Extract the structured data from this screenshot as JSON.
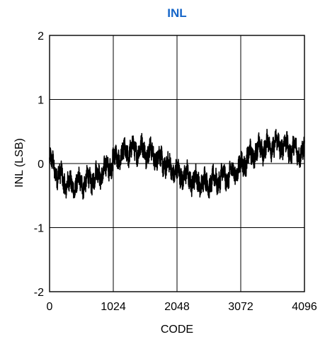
{
  "chart_data": {
    "type": "line",
    "title": "INL",
    "xlabel": "CODE",
    "ylabel": "INL (LSB)",
    "xlim": [
      0,
      4096
    ],
    "ylim": [
      -2,
      2
    ],
    "x_ticks": [
      0,
      1024,
      2048,
      3072,
      4096
    ],
    "y_ticks": [
      2,
      1,
      0,
      -1,
      -2
    ],
    "x_tick_labels": [
      "0",
      "1024",
      "2048",
      "3072",
      "4096"
    ],
    "y_tick_labels": [
      "2",
      "1",
      "0",
      "-1",
      "-2"
    ],
    "grid": true,
    "colors": {
      "title": "#1565c8",
      "line": "#000000",
      "grid": "#000000"
    },
    "series": [
      {
        "x": [
          0,
          128,
          256,
          384,
          512,
          640,
          768,
          896,
          1024,
          1152,
          1280,
          1408,
          1536,
          1664,
          1792,
          1920,
          2048,
          2176,
          2304,
          2432,
          2560,
          2688,
          2816,
          2944,
          3072,
          3200,
          3328,
          3456,
          3584,
          3712,
          3840,
          3968,
          4096
        ],
        "y": [
          0.05,
          -0.15,
          -0.3,
          -0.35,
          -0.3,
          -0.25,
          -0.2,
          -0.1,
          0.05,
          0.12,
          0.2,
          0.22,
          0.2,
          0.15,
          0.05,
          -0.05,
          -0.15,
          -0.2,
          -0.25,
          -0.3,
          -0.3,
          -0.25,
          -0.2,
          -0.15,
          -0.05,
          0.1,
          0.2,
          0.25,
          0.3,
          0.3,
          0.25,
          0.2,
          0.15
        ],
        "noise_amplitude": 0.18
      }
    ]
  }
}
